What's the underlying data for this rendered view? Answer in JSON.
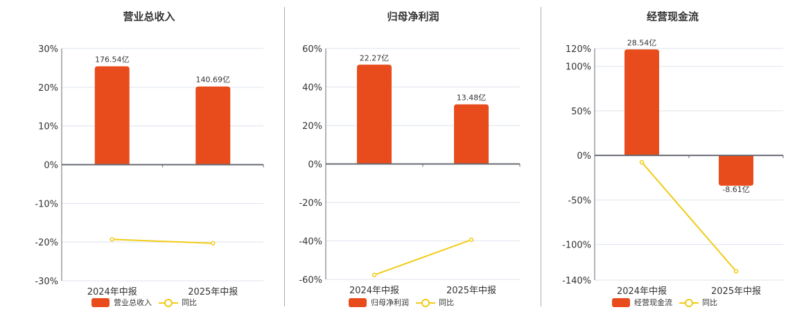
{
  "colors": {
    "bar": "#e84c1c",
    "line": "#f1cb15",
    "grid": "#dde3ee",
    "axis": "#666a72"
  },
  "legend_common": {
    "line_label": "同比"
  },
  "chart_data": [
    {
      "type": "bar+line",
      "title": "营业总收入",
      "categories": [
        "2024年中报",
        "2025年中报"
      ],
      "series": [
        {
          "name": "营业总收入",
          "kind": "bar",
          "values": [
            25.4,
            20.2
          ],
          "labels": [
            "176.54亿",
            "140.69亿"
          ]
        },
        {
          "name": "同比",
          "kind": "line",
          "values": [
            -19.3,
            -20.3
          ]
        }
      ],
      "yticks": [
        30,
        20,
        10,
        0,
        -10,
        -20,
        -30
      ],
      "ytick_labels": [
        "30%",
        "20%",
        "10%",
        "0%",
        "-10%",
        "-20%",
        "-30%"
      ],
      "ylim": [
        -30,
        30
      ],
      "ylabel": "",
      "xlabel": "",
      "grid": true,
      "legend_position": "bottom"
    },
    {
      "type": "bar+line",
      "title": "归母净利润",
      "categories": [
        "2024年中报",
        "2025年中报"
      ],
      "series": [
        {
          "name": "归母净利润",
          "kind": "bar",
          "values": [
            51.6,
            31.0
          ],
          "labels": [
            "22.27亿",
            "13.48亿"
          ]
        },
        {
          "name": "同比",
          "kind": "line",
          "values": [
            -57.7,
            -39.4
          ]
        }
      ],
      "yticks": [
        60,
        40,
        20,
        0,
        -20,
        -40,
        -60
      ],
      "ytick_labels": [
        "60%",
        "40%",
        "20%",
        "0%",
        "-20%",
        "-40%",
        "-60%"
      ],
      "ylim": [
        -60,
        60
      ],
      "ylabel": "",
      "xlabel": "",
      "grid": true,
      "legend_position": "bottom"
    },
    {
      "type": "bar+line",
      "title": "经营现金流",
      "categories": [
        "2024年中报",
        "2025年中报"
      ],
      "series": [
        {
          "name": "经营现金流",
          "kind": "bar",
          "values": [
            119,
            -34
          ],
          "labels": [
            "28.54亿",
            "-8.61亿"
          ]
        },
        {
          "name": "同比",
          "kind": "line",
          "values": [
            -7.7,
            -130
          ]
        }
      ],
      "yticks": [
        120,
        100,
        50,
        0,
        -50,
        -100,
        -140
      ],
      "ytick_labels": [
        "120%",
        "100%",
        "50%",
        "0%",
        "-50%",
        "-100%",
        "-140%"
      ],
      "ylim": [
        -140,
        120
      ],
      "ylabel": "",
      "xlabel": "",
      "grid": true,
      "legend_position": "bottom"
    }
  ]
}
